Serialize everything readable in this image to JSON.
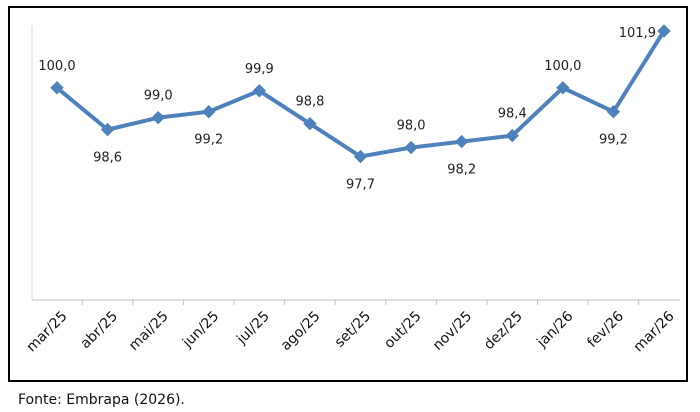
{
  "chart_data": {
    "type": "line",
    "title": "",
    "xlabel": "",
    "ylabel": "",
    "categories": [
      "mar/25",
      "abr/25",
      "mai/25",
      "jun/25",
      "jul/25",
      "ago/25",
      "set/25",
      "out/25",
      "nov/25",
      "dez/25",
      "jan/26",
      "fev/26",
      "mar/26"
    ],
    "series": [
      {
        "values": [
          100.0,
          98.6,
          99.0,
          99.2,
          99.9,
          98.8,
          97.7,
          98.0,
          98.2,
          98.4,
          100.0,
          99.2,
          101.9
        ],
        "labels": [
          "100,0",
          "98,6",
          "99,0",
          "99,2",
          "99,9",
          "98,8",
          "97,7",
          "98,0",
          "98,2",
          "98,4",
          "100,0",
          "99,2",
          "101,9"
        ],
        "label_positions": [
          "above",
          "below",
          "above",
          "below",
          "above",
          "above",
          "below",
          "above",
          "below",
          "above",
          "above",
          "below",
          "left"
        ],
        "color": "#4f81bd",
        "marker": "diamond"
      }
    ],
    "ylim": [
      92.9,
      102.0
    ],
    "grid": false,
    "legend": "none"
  },
  "source": "Fonte: Embrapa (2026)."
}
